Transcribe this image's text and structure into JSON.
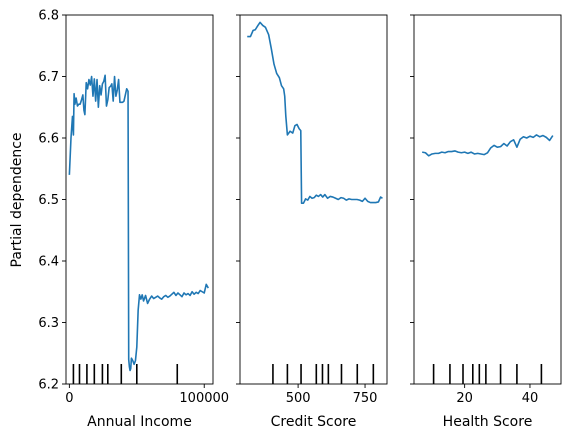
{
  "chart_data": [
    {
      "type": "line",
      "xlabel": "Annual Income",
      "ylabel": "Partial dependence",
      "xlim": [
        -2500,
        106500
      ],
      "ylim": [
        6.2,
        6.8
      ],
      "xticks": [
        {
          "v": 0,
          "label": "0"
        },
        {
          "v": 100000,
          "label": "100000"
        }
      ],
      "yticks": [
        {
          "v": 6.2,
          "label": "6.2"
        },
        {
          "v": 6.3,
          "label": "6.3"
        },
        {
          "v": 6.4,
          "label": "6.4"
        },
        {
          "v": 6.5,
          "label": "6.5"
        },
        {
          "v": 6.6,
          "label": "6.6"
        },
        {
          "v": 6.7,
          "label": "6.7"
        },
        {
          "v": 6.8,
          "label": "6.8"
        }
      ],
      "deciles": [
        3000,
        7500,
        13000,
        18500,
        24500,
        28500,
        38500,
        50000,
        80000
      ],
      "series": [
        {
          "color": "#1f77b4",
          "x": [
            0,
            1200,
            2300,
            3000,
            3500,
            4100,
            5000,
            6000,
            7000,
            8000,
            9000,
            10000,
            10800,
            11500,
            12500,
            13500,
            14500,
            15500,
            16500,
            17500,
            18500,
            19500,
            20500,
            21500,
            22500,
            23500,
            24500,
            25500,
            26500,
            27500,
            28500,
            29500,
            30500,
            31500,
            32500,
            33500,
            34500,
            35500,
            36500,
            37500,
            38500,
            39500,
            40500,
            41500,
            42000,
            42500,
            43000,
            43500,
            44000,
            44500,
            45000,
            45500,
            46000,
            47000,
            48000,
            49000,
            50000,
            51000,
            52000,
            53000,
            54000,
            55000,
            56500,
            58000,
            59500,
            61000,
            62500,
            64000,
            65500,
            67000,
            68500,
            70000,
            71500,
            73000,
            74500,
            76000,
            77500,
            79000,
            80500,
            82000,
            83500,
            85000,
            86500,
            88000,
            89500,
            91000,
            92500,
            94000,
            95500,
            97000,
            98500,
            100000,
            101500,
            103000
          ],
          "y": [
            6.54,
            6.6,
            6.635,
            6.605,
            6.672,
            6.655,
            6.665,
            6.652,
            6.655,
            6.655,
            6.662,
            6.67,
            6.645,
            6.638,
            6.69,
            6.68,
            6.695,
            6.686,
            6.7,
            6.668,
            6.696,
            6.66,
            6.695,
            6.65,
            6.685,
            6.67,
            6.688,
            6.692,
            6.702,
            6.652,
            6.662,
            6.682,
            6.684,
            6.688,
            6.66,
            6.7,
            6.668,
            6.678,
            6.695,
            6.658,
            6.658,
            6.658,
            6.66,
            6.67,
            6.675,
            6.68,
            6.678,
            6.676,
            6.24,
            6.228,
            6.222,
            6.225,
            6.242,
            6.238,
            6.232,
            6.238,
            6.26,
            6.32,
            6.345,
            6.338,
            6.345,
            6.335,
            6.344,
            6.331,
            6.338,
            6.343,
            6.339,
            6.341,
            6.343,
            6.34,
            6.338,
            6.342,
            6.344,
            6.341,
            6.343,
            6.346,
            6.349,
            6.344,
            6.348,
            6.345,
            6.342,
            6.348,
            6.345,
            6.347,
            6.344,
            6.35,
            6.346,
            6.349,
            6.347,
            6.352,
            6.35,
            6.348,
            6.362,
            6.356
          ]
        }
      ]
    },
    {
      "type": "line",
      "xlabel": "Credit Score",
      "ylabel": "",
      "xlim": [
        283,
        832
      ],
      "ylim": [
        6.2,
        6.8
      ],
      "xticks": [
        {
          "v": 500,
          "label": "500"
        },
        {
          "v": 750,
          "label": "750"
        }
      ],
      "yticks": [
        {
          "v": 6.2,
          "label": ""
        },
        {
          "v": 6.3,
          "label": ""
        },
        {
          "v": 6.4,
          "label": ""
        },
        {
          "v": 6.5,
          "label": ""
        },
        {
          "v": 6.6,
          "label": ""
        },
        {
          "v": 6.7,
          "label": ""
        },
        {
          "v": 6.8,
          "label": ""
        }
      ],
      "deciles": [
        406,
        460,
        511,
        568,
        591,
        613,
        662,
        721,
        781
      ],
      "series": [
        {
          "color": "#1f77b4",
          "x": [
            310,
            322,
            332,
            340,
            350,
            358,
            368,
            378,
            390,
            400,
            410,
            420,
            430,
            438,
            446,
            450,
            454,
            460,
            470,
            480,
            488,
            496,
            504,
            510,
            513,
            520,
            528,
            536,
            544,
            552,
            560,
            568,
            576,
            584,
            592,
            600,
            610,
            620,
            630,
            640,
            650,
            660,
            670,
            680,
            690,
            700,
            710,
            720,
            730,
            740,
            750,
            760,
            770,
            780,
            790,
            800,
            808,
            815
          ],
          "y": [
            6.765,
            6.765,
            6.775,
            6.776,
            6.783,
            6.788,
            6.783,
            6.78,
            6.768,
            6.745,
            6.72,
            6.705,
            6.698,
            6.685,
            6.68,
            6.668,
            6.636,
            6.605,
            6.611,
            6.608,
            6.62,
            6.622,
            6.615,
            6.612,
            6.494,
            6.494,
            6.501,
            6.499,
            6.505,
            6.502,
            6.503,
            6.507,
            6.505,
            6.508,
            6.504,
            6.508,
            6.502,
            6.505,
            6.504,
            6.502,
            6.5,
            6.503,
            6.502,
            6.499,
            6.501,
            6.5,
            6.5,
            6.5,
            6.499,
            6.497,
            6.502,
            6.497,
            6.495,
            6.495,
            6.495,
            6.496,
            6.504,
            6.502
          ]
        }
      ]
    },
    {
      "type": "line",
      "xlabel": "Health Score",
      "ylabel": "",
      "xlim": [
        4.5,
        49.5
      ],
      "ylim": [
        6.2,
        6.8
      ],
      "xticks": [
        {
          "v": 20,
          "label": "20"
        },
        {
          "v": 40,
          "label": "40"
        }
      ],
      "yticks": [
        {
          "v": 6.2,
          "label": ""
        },
        {
          "v": 6.3,
          "label": ""
        },
        {
          "v": 6.4,
          "label": ""
        },
        {
          "v": 6.5,
          "label": ""
        },
        {
          "v": 6.6,
          "label": ""
        },
        {
          "v": 6.7,
          "label": ""
        },
        {
          "v": 6.8,
          "label": ""
        }
      ],
      "deciles": [
        10.5,
        15.5,
        19.5,
        22.5,
        24.5,
        26.5,
        31,
        36,
        43.5
      ],
      "series": [
        {
          "color": "#1f77b4",
          "x": [
            7,
            8,
            9,
            10,
            11,
            12,
            13,
            14,
            15,
            16,
            17,
            18,
            19,
            20,
            21,
            22,
            23,
            24,
            25,
            26,
            27,
            28,
            29,
            30,
            31,
            32,
            33,
            34,
            35,
            36,
            37,
            38,
            39,
            40,
            41,
            42,
            43,
            44,
            45,
            46,
            47
          ],
          "y": [
            6.577,
            6.576,
            6.571,
            6.574,
            6.575,
            6.575,
            6.577,
            6.576,
            6.578,
            6.578,
            6.579,
            6.577,
            6.576,
            6.577,
            6.575,
            6.577,
            6.574,
            6.575,
            6.574,
            6.573,
            6.576,
            6.584,
            6.588,
            6.585,
            6.586,
            6.591,
            6.587,
            6.594,
            6.597,
            6.585,
            6.598,
            6.602,
            6.6,
            6.603,
            6.601,
            6.605,
            6.602,
            6.604,
            6.601,
            6.596,
            6.604
          ]
        }
      ]
    }
  ]
}
